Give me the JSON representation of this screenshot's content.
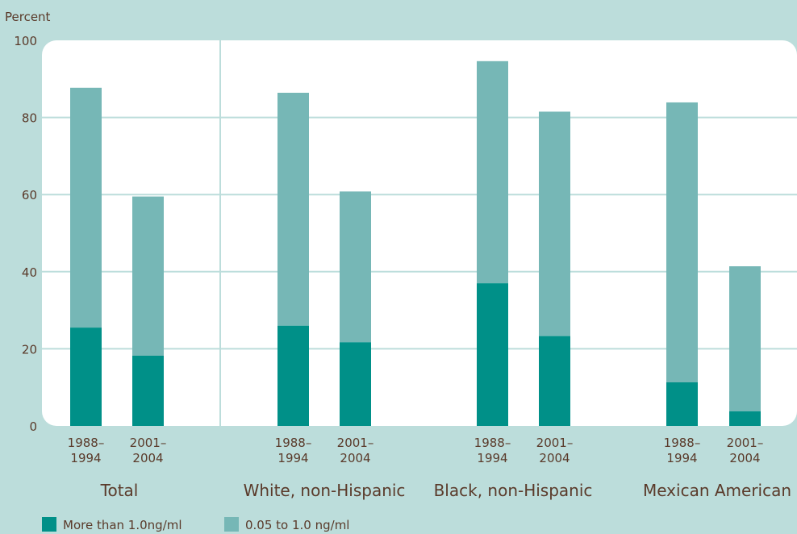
{
  "chart_data": {
    "type": "bar",
    "stacked": true,
    "title": "",
    "ylabel": "Percent",
    "ylim": [
      0,
      100
    ],
    "yticks": [
      0,
      20,
      40,
      60,
      80,
      100
    ],
    "grid": true,
    "legend_position": "bottom-left",
    "groups": [
      {
        "name": "Total",
        "periods": [
          "1988–\n1994",
          "2001–\n2004"
        ]
      },
      {
        "name": "White, non-Hispanic",
        "periods": [
          "1988–\n1994",
          "2001–\n2004"
        ]
      },
      {
        "name": "Black, non-Hispanic",
        "periods": [
          "1988–\n1994",
          "2001–\n2004"
        ]
      },
      {
        "name": "Mexican American",
        "periods": [
          "1988–\n1994",
          "2001–\n2004"
        ]
      }
    ],
    "series": [
      {
        "name": "More than 1.0ng/ml",
        "color": "#009088",
        "values": [
          25.5,
          18.2,
          26.0,
          21.7,
          37.0,
          23.3,
          11.3,
          3.8
        ]
      },
      {
        "name": "0.05 to 1.0 ng/ml",
        "color": "#76b7b6",
        "values": [
          62.2,
          41.3,
          60.4,
          39.1,
          57.6,
          58.2,
          72.6,
          37.6
        ]
      }
    ],
    "plot_background": "#ffffff",
    "page_background": "#bcdddb",
    "grid_color": "#bcdddb"
  }
}
